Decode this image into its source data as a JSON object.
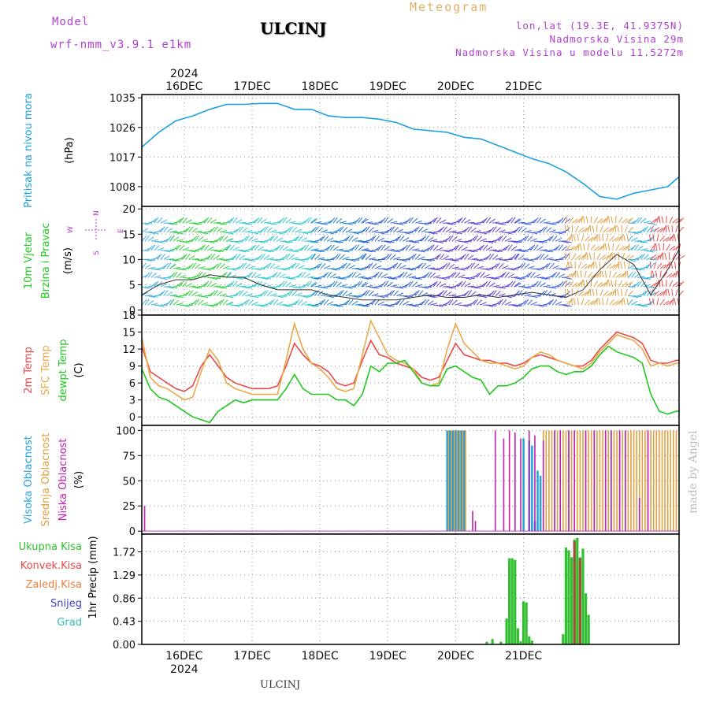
{
  "header": {
    "model_label": "Model",
    "model_name": "wrf-nmm_v3.9.1 e1km",
    "station": "ULCINJ",
    "title": "Meteogram",
    "coords": "lon,lat (19.3E, 41.9375N)",
    "altitude": "Nadmorska Visina 29m",
    "model_altitude": "Nadmorska Visina u modelu 11.5272m",
    "footer_station": "ULCINJ",
    "signature": "made by Angel"
  },
  "colors": {
    "pressure": "#1ca0e0",
    "temp2m": "#e84848",
    "sfc_temp": "#e8a848",
    "dewpoint": "#20c820",
    "high_cloud": "#20a0e0",
    "mid_cloud": "#e0a040",
    "low_cloud": "#c020b0",
    "precip_total": "#30c030",
    "precip_conv": "#a05030",
    "wind_speed": "#303030"
  },
  "time_axis": {
    "year": "2024",
    "days": [
      "16DEC",
      "17DEC",
      "18DEC",
      "19DEC",
      "20DEC",
      "21DEC"
    ]
  },
  "chart_data": [
    {
      "type": "line",
      "panel": "pressure",
      "ylabel": [
        "Pritisak na nivou mora",
        "(hPa)"
      ],
      "yticks": [
        1008,
        1017,
        1026,
        1035
      ],
      "ylim": [
        1002,
        1036
      ],
      "x_hours": [
        0,
        6,
        12,
        18,
        24,
        30,
        36,
        42,
        48,
        54,
        60,
        66,
        72,
        78,
        84,
        90,
        96,
        102,
        108,
        114,
        120,
        126,
        132,
        138,
        144,
        150,
        156,
        162,
        168,
        174,
        180,
        186,
        190
      ],
      "series": [
        {
          "key": "pressure",
          "values": [
            1020,
            1024.5,
            1028,
            1029.5,
            1031.5,
            1033,
            1033,
            1033.3,
            1033.3,
            1031.5,
            1031.5,
            1029.5,
            1029,
            1029,
            1028.5,
            1027.5,
            1025.5,
            1025,
            1024.5,
            1023,
            1022.5,
            1020.5,
            1018.5,
            1016.5,
            1015,
            1012.5,
            1009,
            1005,
            1004.2,
            1006,
            1007,
            1008,
            1011
          ]
        }
      ]
    },
    {
      "type": "line",
      "panel": "wind",
      "ylabel": [
        "10m Vjetar",
        "Brzina i Pravac",
        "(m/s)"
      ],
      "compass": {
        "n": "N",
        "e": "E",
        "w": "W",
        "s": "S"
      },
      "yticks": [
        0,
        5,
        10,
        15,
        20
      ],
      "ylim": [
        -1,
        20.5
      ],
      "x_hours": [
        0,
        6,
        12,
        18,
        24,
        30,
        36,
        42,
        48,
        54,
        60,
        66,
        72,
        78,
        84,
        90,
        96,
        102,
        108,
        114,
        120,
        126,
        132,
        138,
        144,
        150,
        156,
        162,
        168,
        174,
        180,
        186,
        190
      ],
      "series": [
        {
          "key": "wind_speed",
          "values": [
            3,
            5,
            6,
            6,
            7,
            6.5,
            6.5,
            5,
            4,
            4,
            4,
            3,
            2.5,
            2,
            2,
            2,
            2.5,
            3,
            2.5,
            2.5,
            3,
            2.5,
            3,
            3.5,
            3,
            2.5,
            4,
            8,
            11,
            9,
            3,
            8,
            12
          ]
        }
      ],
      "wind_bands": [
        {
          "from": 0,
          "to": 10,
          "color": "#40b0e0"
        },
        {
          "from": 10,
          "to": 30,
          "color": "#30d040"
        },
        {
          "from": 30,
          "to": 60,
          "color": "#30c8d0"
        },
        {
          "from": 60,
          "to": 78,
          "color": "#2080d0"
        },
        {
          "from": 78,
          "to": 102,
          "color": "#3060d0"
        },
        {
          "from": 102,
          "to": 132,
          "color": "#6040d0"
        },
        {
          "from": 132,
          "to": 150,
          "color": "#4060e0"
        },
        {
          "from": 150,
          "to": 172,
          "color": "#e0a040"
        },
        {
          "from": 172,
          "to": 180,
          "color": "#30b0e0"
        },
        {
          "from": 180,
          "to": 190,
          "color": "#e85050"
        }
      ]
    },
    {
      "type": "line",
      "panel": "temperature",
      "ylabel": [
        "2m Temp",
        "SFC Temp",
        "dewpt Temp",
        "(C)"
      ],
      "yticks": [
        0,
        3,
        6,
        9,
        12,
        15,
        18
      ],
      "ylim": [
        -1.5,
        18
      ],
      "x_hours": [
        0,
        3,
        6,
        9,
        12,
        15,
        18,
        21,
        24,
        27,
        30,
        33,
        36,
        39,
        42,
        45,
        48,
        51,
        54,
        57,
        60,
        63,
        66,
        69,
        72,
        75,
        78,
        81,
        84,
        87,
        90,
        93,
        96,
        99,
        102,
        105,
        108,
        111,
        114,
        117,
        120,
        123,
        126,
        129,
        132,
        135,
        138,
        141,
        144,
        147,
        150,
        153,
        156,
        159,
        162,
        165,
        168,
        171,
        174,
        177,
        180,
        183,
        186,
        189,
        190
      ],
      "series": [
        {
          "key": "temp2m",
          "values": [
            12.5,
            8,
            7,
            6,
            5,
            4.5,
            5.5,
            9,
            11,
            9,
            7,
            6,
            5.5,
            5,
            5,
            5,
            5.5,
            9,
            13,
            11,
            9.5,
            9,
            8,
            6,
            5.5,
            6,
            10,
            13.5,
            11,
            10.5,
            9.5,
            9,
            8.5,
            7,
            6.5,
            7,
            10,
            13,
            11,
            10.5,
            10,
            10,
            9.5,
            9.5,
            9,
            9.5,
            10.5,
            11,
            10.5,
            10,
            9.5,
            9,
            9,
            10,
            12,
            13.5,
            15,
            14.5,
            14,
            13,
            10,
            9.5,
            9.5,
            10,
            10
          ]
        },
        {
          "key": "sfc_temp",
          "values": [
            14,
            7,
            5.5,
            5,
            4,
            3,
            3.5,
            8,
            12,
            10,
            6,
            5,
            4.5,
            4,
            4,
            4,
            4,
            10,
            16.5,
            12,
            9.5,
            8.5,
            7,
            5,
            4.5,
            5,
            11,
            17,
            14,
            11,
            10,
            9.5,
            8.5,
            6,
            5.5,
            6,
            12,
            16.5,
            13,
            11.5,
            10,
            9.5,
            9.5,
            9,
            8.5,
            9,
            10.5,
            11.5,
            11,
            10,
            9.5,
            9,
            8.5,
            9.5,
            11.5,
            13,
            14.5,
            14,
            13.5,
            12,
            9,
            9.5,
            9,
            9.5,
            9.5
          ]
        },
        {
          "key": "dewpoint",
          "values": [
            8.5,
            5,
            3.5,
            3,
            2,
            1,
            0,
            -0.5,
            -1,
            1,
            2,
            3,
            2.5,
            3,
            3,
            3,
            3,
            5,
            7.5,
            5,
            4,
            4,
            4,
            3,
            3,
            2,
            4,
            9,
            8,
            9.5,
            9.5,
            10,
            8,
            6,
            5.5,
            5.5,
            8.5,
            9,
            8,
            7,
            6.5,
            4,
            5.5,
            5.5,
            6,
            7,
            8.5,
            9,
            9,
            8,
            7.5,
            8,
            8,
            9,
            11,
            12.5,
            11.5,
            11,
            10.5,
            9.5,
            4,
            1,
            0.5,
            1,
            1
          ]
        }
      ]
    },
    {
      "type": "bar",
      "panel": "cloud",
      "ylabel": [
        "Visoka Oblacnost",
        "Srednja Oblacnost",
        "Niska Oblacnost",
        "(%)"
      ],
      "yticks": [
        0,
        25,
        50,
        75,
        100
      ],
      "ylim": [
        -3,
        105
      ],
      "series": [
        {
          "key": "high_cloud",
          "bars": [
            [
              108,
              100
            ],
            [
              109,
              100
            ],
            [
              110,
              100
            ],
            [
              111,
              100
            ],
            [
              112,
              100
            ],
            [
              113,
              100
            ],
            [
              114,
              100
            ],
            [
              135,
              92
            ],
            [
              137,
              90
            ],
            [
              138,
              85
            ],
            [
              139,
              10
            ],
            [
              140,
              60
            ],
            [
              141,
              55
            ]
          ]
        },
        {
          "key": "mid_cloud",
          "bars": [
            [
              108.5,
              100
            ],
            [
              109.5,
              100
            ],
            [
              110.5,
              100
            ],
            [
              111.5,
              100
            ],
            [
              112.5,
              100
            ],
            [
              113.5,
              100
            ],
            [
              114.5,
              100
            ],
            [
              142,
              100
            ],
            [
              143,
              100
            ],
            [
              144,
              100
            ],
            [
              145,
              100
            ],
            [
              146,
              100
            ],
            [
              147,
              100
            ],
            [
              148,
              100
            ],
            [
              149,
              100
            ],
            [
              150,
              100
            ],
            [
              151,
              100
            ],
            [
              152,
              100
            ],
            [
              153,
              100
            ],
            [
              154,
              100
            ],
            [
              155,
              100
            ],
            [
              156,
              100
            ],
            [
              157,
              100
            ],
            [
              158,
              100
            ],
            [
              159,
              100
            ],
            [
              160,
              100
            ],
            [
              161,
              100
            ],
            [
              162,
              100
            ],
            [
              163,
              100
            ],
            [
              164,
              100
            ],
            [
              165,
              100
            ],
            [
              166,
              100
            ],
            [
              167,
              100
            ],
            [
              168,
              100
            ],
            [
              169,
              100
            ],
            [
              170,
              100
            ],
            [
              171,
              100
            ],
            [
              172,
              100
            ],
            [
              173,
              100
            ],
            [
              174,
              100
            ],
            [
              175,
              100
            ],
            [
              176,
              100
            ],
            [
              177,
              100
            ],
            [
              178,
              100
            ],
            [
              179,
              100
            ],
            [
              180,
              100
            ],
            [
              181,
              100
            ],
            [
              182,
              100
            ],
            [
              183,
              100
            ],
            [
              184,
              100
            ],
            [
              185,
              100
            ],
            [
              186,
              100
            ],
            [
              187,
              100
            ],
            [
              188,
              100
            ],
            [
              189,
              100
            ]
          ]
        },
        {
          "key": "low_cloud",
          "bars": [
            [
              1,
              25
            ],
            [
              117,
              20
            ],
            [
              118,
              10
            ],
            [
              125,
              100
            ],
            [
              128,
              92
            ],
            [
              130,
              100
            ],
            [
              132,
              98
            ],
            [
              134,
              92
            ],
            [
              137,
              100
            ],
            [
              139,
              95
            ],
            [
              142,
              90
            ],
            [
              146,
              100
            ],
            [
              148,
              100
            ],
            [
              151,
              100
            ],
            [
              153,
              100
            ],
            [
              157,
              100
            ],
            [
              160,
              100
            ],
            [
              164,
              100
            ],
            [
              166,
              100
            ],
            [
              169,
              100
            ],
            [
              171,
              100
            ],
            [
              176,
              33
            ],
            [
              179,
              100
            ]
          ]
        }
      ]
    },
    {
      "type": "bar",
      "panel": "precip",
      "ylabel": [
        "1hr Precip (mm)"
      ],
      "legend": [
        "Ukupna Kisa",
        "Konvek.Kisa",
        "Zaledj.Kisa",
        "Snijeg",
        "Grad"
      ],
      "legend_colors": [
        "#30c030",
        "#e84848",
        "#e88040",
        "#4040d0",
        "#30c0b0"
      ],
      "yticks": [
        0,
        0.43,
        0.86,
        1.29,
        1.72
      ],
      "ylim": [
        0,
        2.05
      ],
      "series": [
        {
          "key": "precip_total",
          "bars": [
            [
              122,
              0.05
            ],
            [
              124,
              0.1
            ],
            [
              127,
              0.05
            ],
            [
              129,
              0.48
            ],
            [
              130,
              1.6
            ],
            [
              131,
              1.6
            ],
            [
              132,
              1.57
            ],
            [
              133,
              0.3
            ],
            [
              134,
              0.06
            ],
            [
              135,
              0.8
            ],
            [
              136,
              0.78
            ],
            [
              137,
              0.15
            ],
            [
              138,
              0.07
            ],
            [
              149,
              0.19
            ],
            [
              150,
              1.8
            ],
            [
              151,
              1.75
            ],
            [
              152,
              1.62
            ],
            [
              153,
              1.95
            ],
            [
              154,
              1.98
            ],
            [
              155,
              1.62
            ],
            [
              156,
              1.78
            ],
            [
              157,
              0.95
            ],
            [
              158,
              0.55
            ]
          ]
        },
        {
          "key": "precip_conv",
          "bars": [
            [
              153,
              1.92
            ],
            [
              155,
              1.6
            ]
          ]
        }
      ]
    }
  ]
}
